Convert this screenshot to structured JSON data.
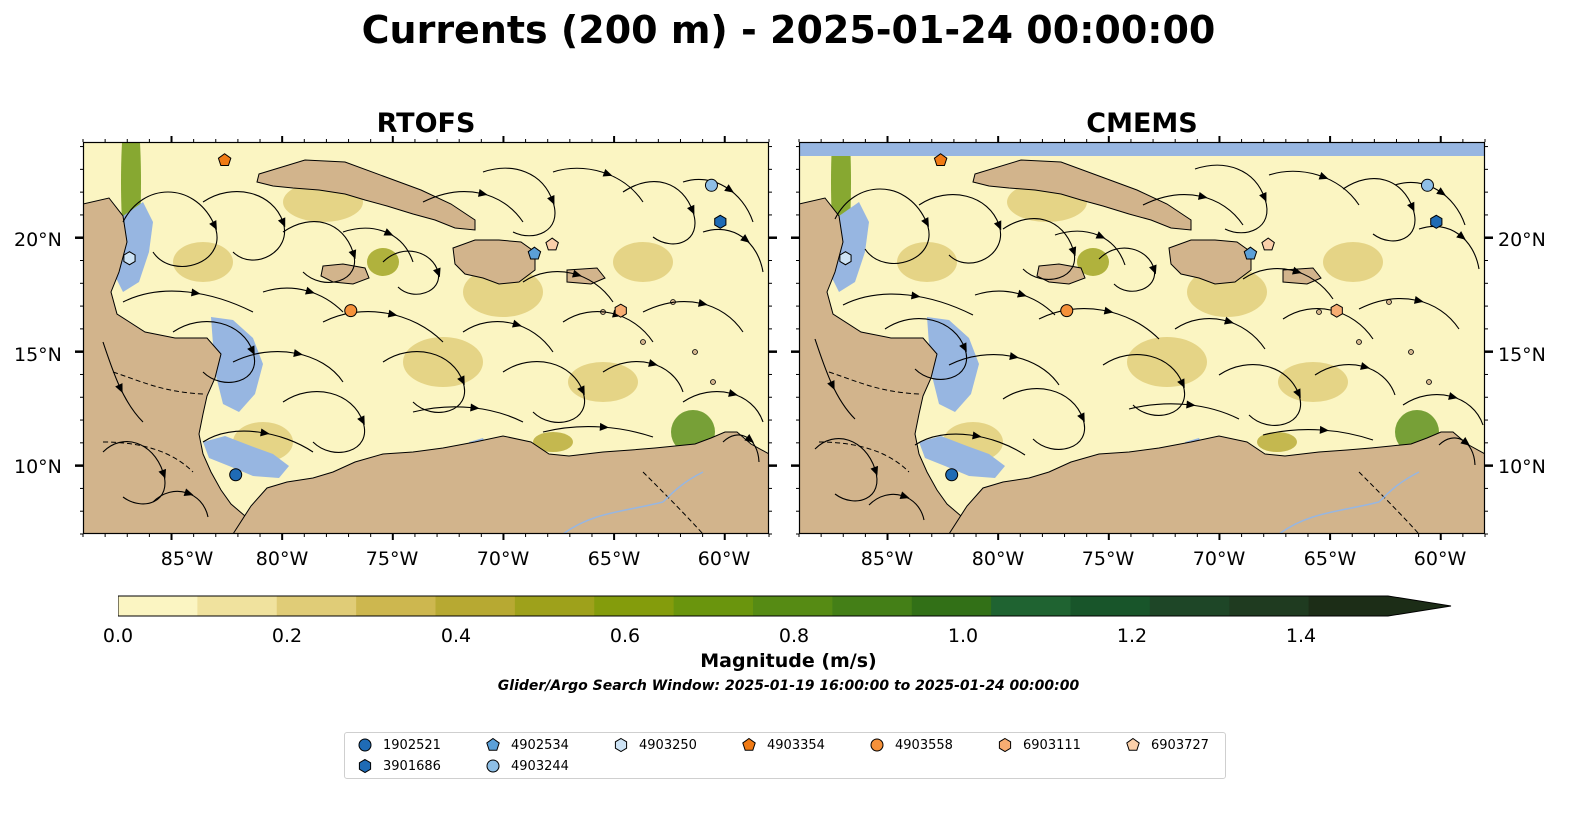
{
  "title": "Currents (200 m) - 2025-01-24 00:00:00",
  "panels": [
    {
      "title": "RTOFS"
    },
    {
      "title": "CMEMS"
    }
  ],
  "axes": {
    "lat_ticks": [
      "20°N",
      "15°N",
      "10°N"
    ],
    "lon_ticks": [
      "85°W",
      "80°W",
      "75°W",
      "70°W",
      "65°W",
      "60°W"
    ]
  },
  "colorbar": {
    "label": "Magnitude (m/s)",
    "ticks": [
      "0.0",
      "0.2",
      "0.4",
      "0.6",
      "0.8",
      "1.0",
      "1.2",
      "1.4"
    ],
    "colors": [
      "#fbf5c2",
      "#f0e29e",
      "#e0cc77",
      "#cdb74f",
      "#b7a932",
      "#9ea11b",
      "#849c0c",
      "#6a950d",
      "#568b14",
      "#447f17",
      "#327017",
      "#1f6331",
      "#18552a",
      "#1e4627",
      "#1f3b20",
      "#1c2d17"
    ]
  },
  "search_window_note": "Glider/Argo Search Window: 2025-01-19 16:00:00 to 2025-01-24 00:00:00",
  "legend": [
    {
      "id": "1902521",
      "shape": "circle",
      "color": "#1f6bb5"
    },
    {
      "id": "3901686",
      "shape": "hexagon",
      "color": "#1f6bb5"
    },
    {
      "id": "4902534",
      "shape": "pentagon",
      "color": "#5ba0d8"
    },
    {
      "id": "4903244",
      "shape": "circle",
      "color": "#8ebfe6"
    },
    {
      "id": "4903250",
      "shape": "hexagon",
      "color": "#cde3f5"
    },
    {
      "id": "4903354",
      "shape": "pentagon",
      "color": "#f07a14"
    },
    {
      "id": "4903558",
      "shape": "circle",
      "color": "#f5913a"
    },
    {
      "id": "6903111",
      "shape": "hexagon",
      "color": "#f7ad72"
    },
    {
      "id": "6903727",
      "shape": "pentagon",
      "color": "#fbd0aa"
    }
  ],
  "map_extent": {
    "lon": [
      -89,
      -58
    ],
    "lat": [
      7,
      24.2
    ]
  },
  "floats": [
    {
      "id": "4903354",
      "lon": -82.6,
      "lat": 23.4
    },
    {
      "id": "4903244",
      "lon": -60.6,
      "lat": 22.3
    },
    {
      "id": "3901686",
      "lon": -60.2,
      "lat": 20.7
    },
    {
      "id": "4903250",
      "lon": -86.9,
      "lat": 19.1
    },
    {
      "id": "4902534",
      "lon": -68.6,
      "lat": 19.3
    },
    {
      "id": "6903727",
      "lon": -67.8,
      "lat": 19.7
    },
    {
      "id": "4903558",
      "lon": -76.9,
      "lat": 16.8
    },
    {
      "id": "6903111",
      "lon": -64.7,
      "lat": 16.8
    },
    {
      "id": "1902521",
      "lon": -82.1,
      "lat": 9.6
    }
  ]
}
